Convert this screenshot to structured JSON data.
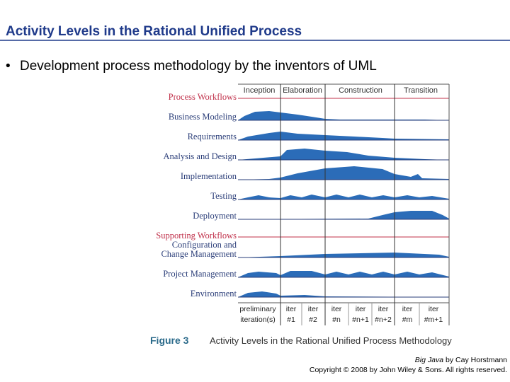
{
  "title": "Activity Levels in the Rational Unified Process",
  "bullet": "Development process methodology by the inventors of UML",
  "figure": {
    "phases": [
      "Inception",
      "Elaboration",
      "Construction",
      "Transition"
    ],
    "process_heading": "Process Workflows",
    "process_workflows": [
      "Business Modeling",
      "Requirements",
      "Analysis and Design",
      "Implementation",
      "Testing",
      "Deployment"
    ],
    "supporting_heading": "Supporting Workflows",
    "supporting_workflows": [
      {
        "lines": [
          "Configuration and",
          "Change Management"
        ]
      },
      {
        "lines": [
          "Project Management"
        ]
      },
      {
        "lines": [
          "Environment"
        ]
      }
    ],
    "iterations": [
      {
        "top": "preliminary",
        "bottom": "iteration(s)"
      },
      {
        "top": "iter",
        "bottom": "#1"
      },
      {
        "top": "iter",
        "bottom": "#2"
      },
      {
        "top": "iter",
        "bottom": "#n"
      },
      {
        "top": "iter",
        "bottom": "#n+1"
      },
      {
        "top": "iter",
        "bottom": "#n+2"
      },
      {
        "top": "iter",
        "bottom": "#m"
      },
      {
        "top": "iter",
        "bottom": "#m+1"
      }
    ],
    "caption_label": "Figure 3",
    "caption": "Activity Levels in the Rational Unified Process Methodology"
  },
  "credit": {
    "book": "Big Java",
    "author": "by Cay Horstmann",
    "copyright": "Copyright © 2008 by John Wiley & Sons. All rights reserved."
  }
}
